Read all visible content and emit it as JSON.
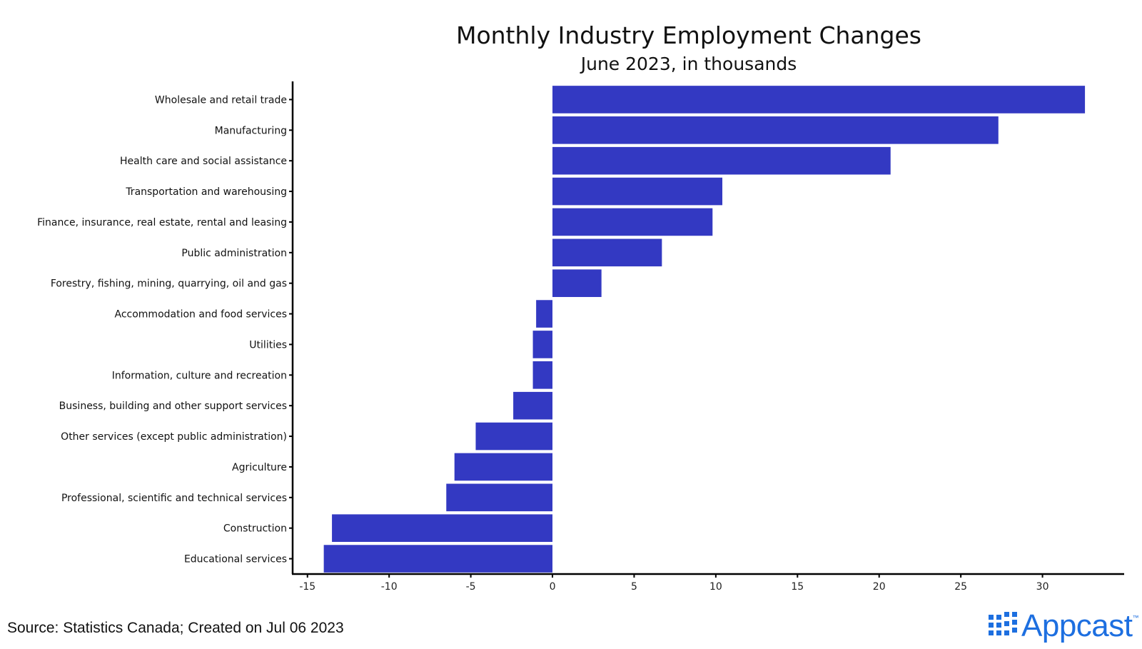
{
  "chart_data": {
    "type": "bar",
    "orientation": "horizontal",
    "title": "Monthly Industry Employment Changes",
    "subtitle": "June 2023, in thousands",
    "categories": [
      "Wholesale and retail trade",
      "Manufacturing",
      "Health care and social assistance",
      "Transportation and warehousing",
      "Finance, insurance, real estate, rental and leasing",
      "Public administration",
      "Forestry, fishing, mining, quarrying, oil and gas",
      "Accommodation and food services",
      "Utilities",
      "Information, culture and recreation",
      "Business, building and other support services",
      "Other services (except public administration)",
      "Agriculture",
      "Professional, scientific and technical services",
      "Construction",
      "Educational services"
    ],
    "values": [
      32.6,
      27.3,
      20.7,
      10.4,
      9.8,
      6.7,
      3.0,
      -1.0,
      -1.2,
      -1.2,
      -2.4,
      -4.7,
      -6.0,
      -6.5,
      -13.5,
      -14.0
    ],
    "xlabel": "",
    "ylabel": "",
    "xlim": [
      -16.3,
      35.0
    ],
    "xticks": [
      -15,
      -10,
      -5,
      0,
      5,
      10,
      15,
      20,
      25,
      30
    ],
    "grid": false,
    "bar_color": "#3339c2"
  },
  "footer": {
    "source": "Source: Statistics Canada; Created on Jul 06 2023"
  },
  "logo": {
    "text": "Appcast",
    "mark": "™",
    "color": "#1d6fe0"
  }
}
